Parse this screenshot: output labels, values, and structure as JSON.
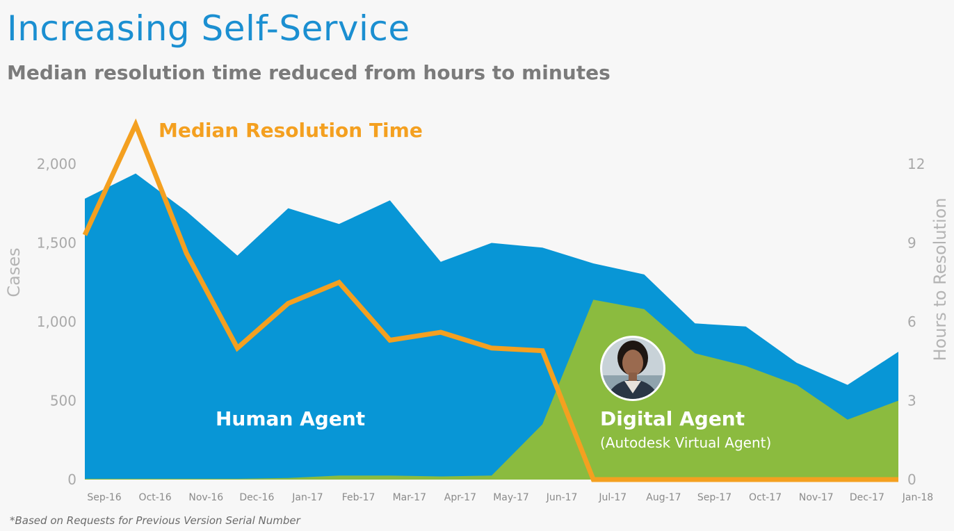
{
  "header": {
    "title": "Increasing Self-Service",
    "subtitle": "Median resolution time reduced from hours to minutes"
  },
  "footnote": "*Based on Requests for Previous Version Serial Number",
  "colors": {
    "human": "#0896d6",
    "digital": "#8bbb3f",
    "line": "#f4a020",
    "title": "#1b8fd1",
    "tick": "#a9a9a9"
  },
  "avatar": {
    "icon": "agent-avatar-icon"
  },
  "chart_data": {
    "type": "area",
    "categories": [
      "Sep-16",
      "Oct-16",
      "Nov-16",
      "Dec-16",
      "Jan-17",
      "Feb-17",
      "Mar-17",
      "Apr-17",
      "May-17",
      "Jun-17",
      "Jul-17",
      "Aug-17",
      "Sep-17",
      "Oct-17",
      "Nov-17",
      "Dec-17",
      "Jan-18"
    ],
    "series": [
      {
        "name": "Human Agent",
        "stacked_total": true,
        "values": [
          1780,
          1940,
          1700,
          1420,
          1720,
          1620,
          1770,
          1380,
          1500,
          1470,
          1370,
          1300,
          990,
          970,
          740,
          600,
          810
        ]
      },
      {
        "name": "Digital Agent",
        "sublabel": "(Autodesk Virtual Agent)",
        "values": [
          5,
          5,
          5,
          5,
          10,
          25,
          25,
          20,
          25,
          350,
          1140,
          1080,
          800,
          720,
          600,
          380,
          500
        ]
      }
    ],
    "line_series": {
      "name": "Median Resolution Time",
      "axis": "right",
      "values": [
        9.3,
        13.5,
        8.6,
        5.0,
        6.7,
        7.5,
        5.3,
        5.6,
        5.0,
        4.9,
        0,
        0,
        0,
        0,
        0,
        0,
        0
      ]
    },
    "ylabel": "Cases",
    "ylabel_right": "Hours to Resolution",
    "ylim": [
      0,
      2000
    ],
    "ylim_right": [
      0,
      12
    ],
    "yticks": [
      "0",
      "500",
      "1,000",
      "1,500",
      "2,000"
    ],
    "yticks_right": [
      "0",
      "3",
      "6",
      "9",
      "12"
    ],
    "grid": false,
    "legend": "none"
  }
}
